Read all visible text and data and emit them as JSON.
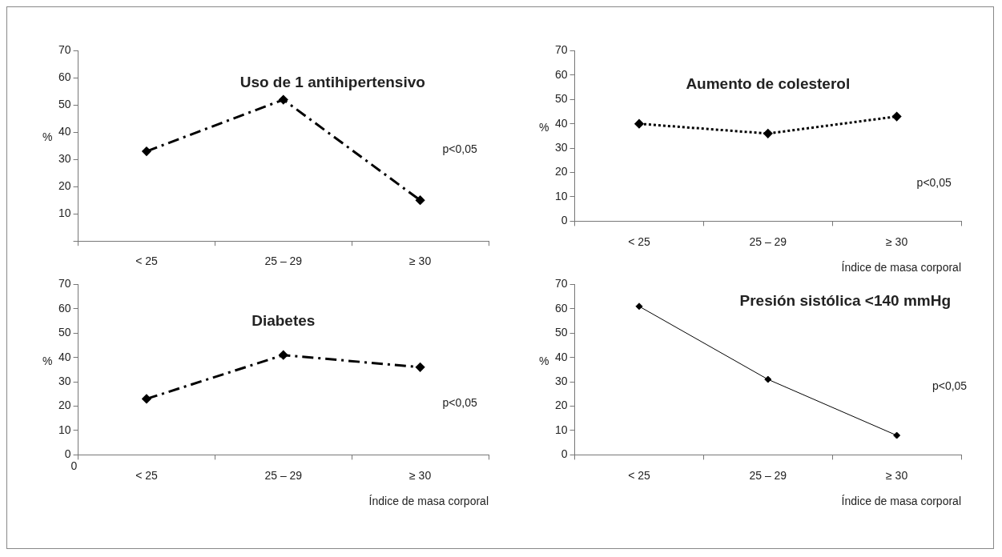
{
  "chart_data": [
    {
      "type": "line",
      "title": "Uso de 1 antihipertensivo",
      "ylabel": "%",
      "categories": [
        "< 25",
        "25 – 29",
        "≥ 30"
      ],
      "series": [
        {
          "color": "#000000",
          "values": [
            33,
            52,
            15
          ]
        }
      ],
      "ylim": [
        0,
        70
      ],
      "yticks": [
        {
          "value": 0,
          "label": null
        },
        10,
        20,
        30,
        40,
        50,
        60,
        70
      ],
      "grid": false,
      "legend": false,
      "marker": "diamond",
      "line_style": "dashed",
      "annotations": [
        "p<0,05"
      ]
    },
    {
      "type": "line",
      "title": "Aumento de colesterol",
      "xlabel": "Índice de masa corporal",
      "ylabel": "%",
      "categories": [
        "< 25",
        "25 – 29",
        "≥ 30"
      ],
      "series": [
        {
          "color": "#000000",
          "values": [
            40,
            36,
            43
          ]
        }
      ],
      "ylim": [
        0,
        70
      ],
      "yticks": [
        0,
        10,
        20,
        30,
        40,
        50,
        60,
        70
      ],
      "grid": false,
      "legend": false,
      "marker": "diamond",
      "line_style": "dotted",
      "annotations": [
        "p<0,05"
      ]
    },
    {
      "type": "line",
      "title": "Diabetes",
      "xlabel": "Índice de masa corporal",
      "ylabel": "%",
      "categories": [
        "< 25",
        "25 – 29",
        "≥ 30"
      ],
      "series": [
        {
          "color": "#000000",
          "values": [
            23,
            41,
            36
          ]
        }
      ],
      "ylim": [
        0,
        70
      ],
      "yticks": [
        0,
        10,
        20,
        30,
        40,
        50,
        60,
        70
      ],
      "grid": false,
      "legend": false,
      "marker": "diamond",
      "line_style": "dashed",
      "annotations": [
        "0",
        "p<0,05"
      ]
    },
    {
      "type": "line",
      "title": "Presión sistólica <140 mmHg",
      "xlabel": "Índice de masa corporal",
      "ylabel": "%",
      "categories": [
        "< 25",
        "25 – 29",
        "≥ 30"
      ],
      "series": [
        {
          "color": "#000000",
          "values": [
            61,
            31,
            8
          ]
        }
      ],
      "ylim": [
        0,
        70
      ],
      "yticks": [
        0,
        10,
        20,
        30,
        40,
        50,
        60,
        70
      ],
      "grid": false,
      "legend": false,
      "marker": "diamond",
      "line_style": "solid",
      "annotations": [
        "p<0,05"
      ]
    }
  ]
}
